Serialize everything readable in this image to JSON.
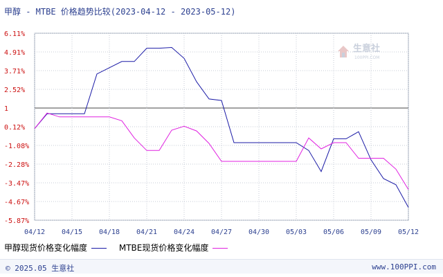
{
  "title": "甲醇 - MTBE 价格趋势比较(2023-04-12 - 2023-05-12)",
  "footer": {
    "copyright": "© 2025.05 生意社",
    "site": "www.100PPI.com"
  },
  "watermark": {
    "name": "生意社",
    "domain": "100PPI.COM"
  },
  "colors": {
    "series1": "#1a1aa6",
    "series2": "#e020e0",
    "grid": "#c6cbd6",
    "title": "#2b3f8f",
    "baseline": "#444444"
  },
  "chart_data": {
    "type": "line",
    "x": [
      "04/12",
      "04/13",
      "04/14",
      "04/15",
      "04/16",
      "04/17",
      "04/18",
      "04/19",
      "04/20",
      "04/21",
      "04/22",
      "04/23",
      "04/24",
      "04/25",
      "04/26",
      "04/27",
      "04/28",
      "04/29",
      "04/30",
      "05/01",
      "05/02",
      "05/03",
      "05/04",
      "05/05",
      "05/06",
      "05/07",
      "05/08",
      "05/09",
      "05/10",
      "05/11",
      "05/12"
    ],
    "x_ticks": [
      "04/12",
      "04/15",
      "04/18",
      "04/21",
      "04/24",
      "04/27",
      "04/30",
      "05/03",
      "05/06",
      "05/09",
      "05/12"
    ],
    "y_ticks": [
      "6.11%",
      "4.91%",
      "3.71%",
      "2.52%",
      "1",
      "0.12%",
      "-1.08%",
      "-2.28%",
      "-3.47%",
      "-4.67%",
      "-5.87%"
    ],
    "ylim": [
      -5.87,
      6.11
    ],
    "baseline_label": "1",
    "series": [
      {
        "name": "甲醇现货价格变化幅度",
        "color": "#1a1aa6",
        "values": [
          0,
          0.95,
          0.95,
          0.95,
          0.95,
          3.5,
          3.9,
          4.3,
          4.3,
          5.15,
          5.15,
          5.2,
          4.5,
          3.0,
          1.9,
          1.8,
          -0.9,
          -0.9,
          -0.9,
          -0.9,
          -0.9,
          -0.9,
          -1.4,
          -2.75,
          -0.65,
          -0.65,
          -0.2,
          -2.0,
          -3.2,
          -3.6,
          -5.05
        ]
      },
      {
        "name": "MTBE现货价格变化幅度",
        "color": "#e020e0",
        "values": [
          0,
          1.0,
          0.75,
          0.75,
          0.75,
          0.75,
          0.75,
          0.5,
          -0.6,
          -1.4,
          -1.4,
          -0.1,
          0.15,
          -0.15,
          -0.95,
          -2.1,
          -2.1,
          -2.1,
          -2.1,
          -2.1,
          -2.1,
          -2.1,
          -0.6,
          -1.3,
          -0.9,
          -0.9,
          -1.9,
          -1.9,
          -1.9,
          -2.6,
          -3.9
        ]
      }
    ]
  }
}
